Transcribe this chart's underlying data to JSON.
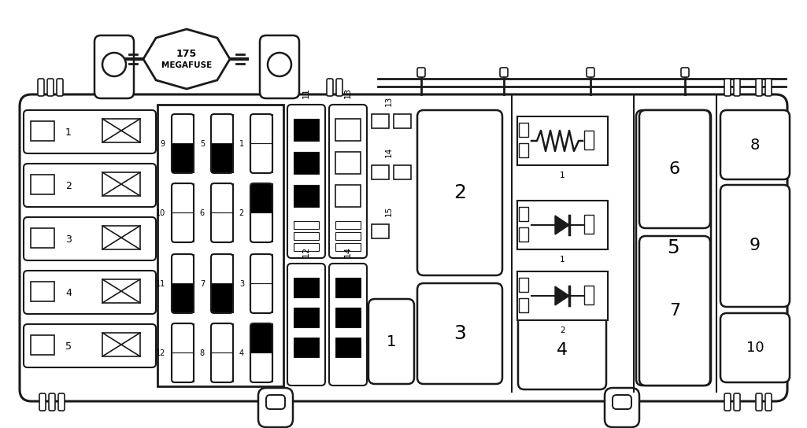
{
  "bg_color": "#ffffff",
  "line_color": "#1a1a1a",
  "fig_width": 10.25,
  "fig_height": 5.44,
  "dpi": 100
}
